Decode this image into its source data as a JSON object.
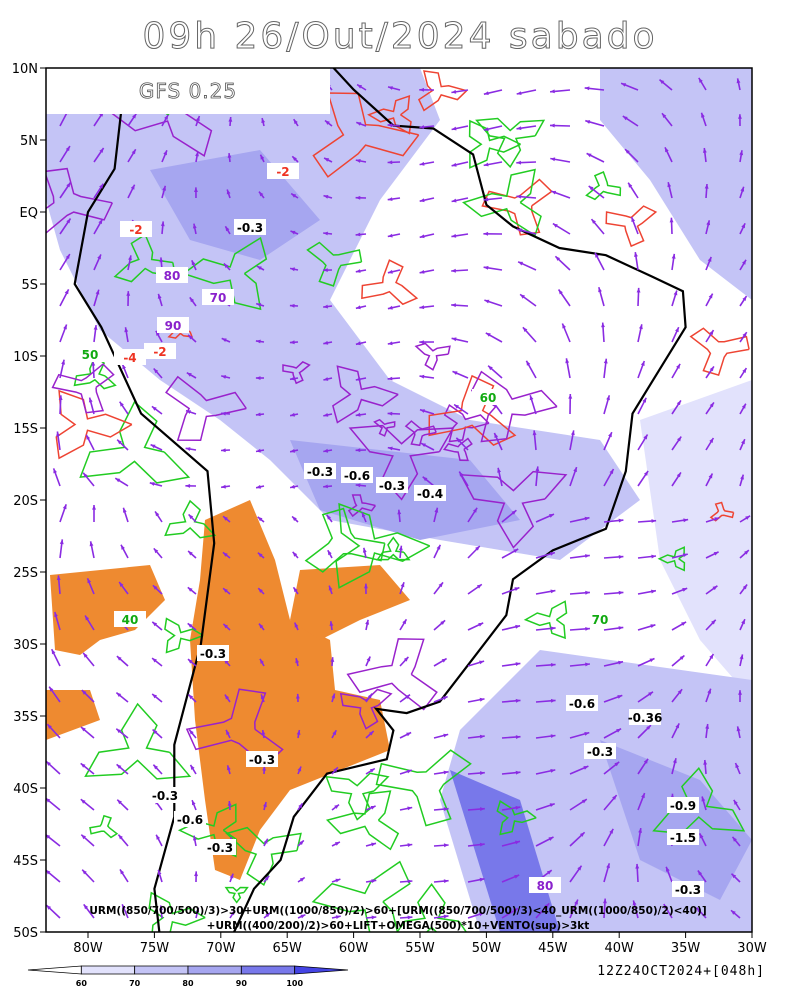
{
  "header": {
    "title": "09h 26/Out/2024 sabado",
    "model": "GFS 0.25"
  },
  "lat_labels": [
    "10N",
    "5N",
    "EQ",
    "5S",
    "10S",
    "15S",
    "20S",
    "25S",
    "30S",
    "35S",
    "40S",
    "45S",
    "50S"
  ],
  "lon_labels": [
    "80W",
    "75W",
    "70W",
    "65W",
    "60W",
    "55W",
    "50W",
    "45W",
    "40W",
    "35W",
    "30W"
  ],
  "contour_labels": [
    "-0.3",
    "-2",
    "-2",
    "80",
    "70",
    "90",
    "-4",
    "-2",
    "-0.3",
    "-0.6",
    "-0.3",
    "-0.4",
    "-0.3",
    "-0.3",
    "-0.3",
    "-0.6",
    "-0.3",
    "-0.6",
    "-0.36",
    "-0.3",
    "-0.9",
    "-1.5",
    "-0.3",
    "80",
    "60",
    "50",
    "40",
    "70"
  ],
  "footer": [
    "URM((850/700/500)/3)>30+URM((1000/850)/2)>60+[URM((850/700/500)/3)<40_URM((1000/850)/2)<40)]",
    "+URM((400/200)/2)>60+LIFT+OMEGA(500)*10+VENTO(sup)>3kt"
  ],
  "colorbar": {
    "ticks": [
      60,
      70,
      80,
      90,
      100
    ],
    "colors": [
      "#ffffff",
      "#e2e2fc",
      "#c4c4f6",
      "#a6a6f0",
      "#7878ea",
      "#4444e4"
    ]
  },
  "timestamp": "12Z24OCT2024+[048h]"
}
